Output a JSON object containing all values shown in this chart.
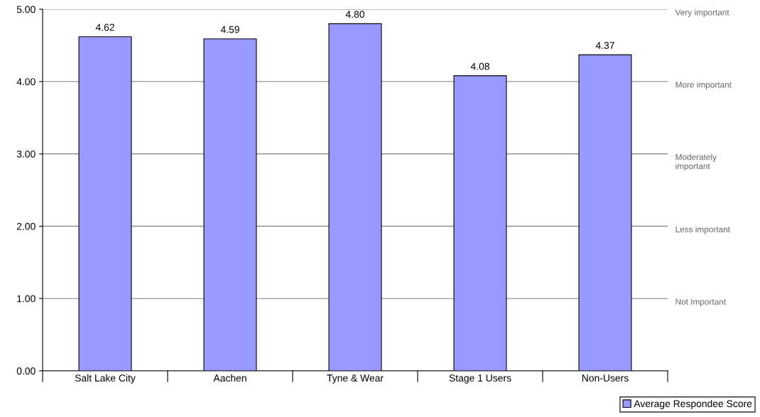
{
  "chart_data": {
    "type": "bar",
    "categories": [
      "Salt Lake City",
      "Aachen",
      "Tyne & Wear",
      "Stage 1 Users",
      "Non-Users"
    ],
    "series": [
      {
        "name": "Average Respondee Score",
        "color": "#9999ff",
        "values": [
          4.62,
          4.59,
          4.8,
          4.08,
          4.37
        ],
        "value_labels": [
          "4.62",
          "4.59",
          "4.80",
          "4.08",
          "4.37"
        ]
      }
    ],
    "ylim": [
      0,
      5
    ],
    "yticks": [
      {
        "value": 0,
        "label": "0.00"
      },
      {
        "value": 1,
        "label": "1.00"
      },
      {
        "value": 2,
        "label": "2.00"
      },
      {
        "value": 3,
        "label": "3.00"
      },
      {
        "value": 4,
        "label": "4.00"
      },
      {
        "value": 5,
        "label": "5.00"
      }
    ],
    "annotations": [
      "Very important",
      "More important",
      "Moderately\nimportant",
      "Less important",
      "Not Important"
    ],
    "grid": "y",
    "legend": "bottom right"
  }
}
